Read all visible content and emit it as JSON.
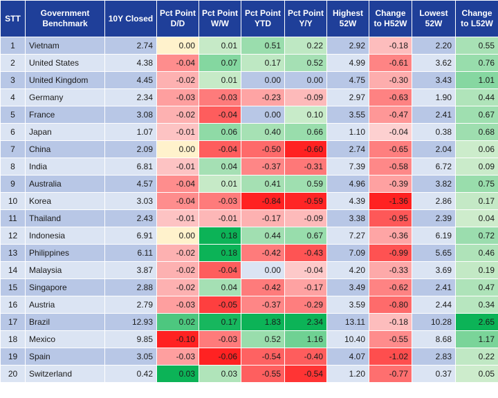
{
  "columns": [
    "STT",
    "Government Benchmark",
    "10Y Closed",
    "Pct Point D/D",
    "Pct Point W/W",
    "Pct Point YTD",
    "Pct Point Y/Y",
    "Highest 52W",
    "Change to H52W",
    "Lowest 52W",
    "Change to L52W"
  ],
  "rows": [
    {
      "stt": "1",
      "name": "Vietnam",
      "closed": "2.74",
      "dd": "0.00",
      "ww": "0.01",
      "ytd": "0.51",
      "yy": "0.22",
      "high": "2.92",
      "chigh": "-0.18",
      "low": "2.20",
      "clow": "0.55"
    },
    {
      "stt": "2",
      "name": "United States",
      "closed": "4.38",
      "dd": "-0.04",
      "ww": "0.07",
      "ytd": "0.17",
      "yy": "0.52",
      "high": "4.99",
      "chigh": "-0.61",
      "low": "3.62",
      "clow": "0.76"
    },
    {
      "stt": "3",
      "name": "United Kingdom",
      "closed": "4.45",
      "dd": "-0.02",
      "ww": "0.01",
      "ytd": "0.00",
      "yy": "0.00",
      "high": "4.75",
      "chigh": "-0.30",
      "low": "3.43",
      "clow": "1.01"
    },
    {
      "stt": "4",
      "name": "Germany",
      "closed": "2.34",
      "dd": "-0.03",
      "ww": "-0.03",
      "ytd": "-0.23",
      "yy": "-0.09",
      "high": "2.97",
      "chigh": "-0.63",
      "low": "1.90",
      "clow": "0.44"
    },
    {
      "stt": "5",
      "name": "France",
      "closed": "3.08",
      "dd": "-0.02",
      "ww": "-0.04",
      "ytd": "0.00",
      "yy": "0.10",
      "high": "3.55",
      "chigh": "-0.47",
      "low": "2.41",
      "clow": "0.67"
    },
    {
      "stt": "6",
      "name": "Japan",
      "closed": "1.07",
      "dd": "-0.01",
      "ww": "0.06",
      "ytd": "0.40",
      "yy": "0.66",
      "high": "1.10",
      "chigh": "-0.04",
      "low": "0.38",
      "clow": "0.68"
    },
    {
      "stt": "7",
      "name": "China",
      "closed": "2.09",
      "dd": "0.00",
      "ww": "-0.04",
      "ytd": "-0.50",
      "yy": "-0.60",
      "high": "2.74",
      "chigh": "-0.65",
      "low": "2.04",
      "clow": "0.06"
    },
    {
      "stt": "8",
      "name": "India",
      "closed": "6.81",
      "dd": "-0.01",
      "ww": "0.04",
      "ytd": "-0.37",
      "yy": "-0.31",
      "high": "7.39",
      "chigh": "-0.58",
      "low": "6.72",
      "clow": "0.09"
    },
    {
      "stt": "9",
      "name": "Australia",
      "closed": "4.57",
      "dd": "-0.04",
      "ww": "0.01",
      "ytd": "0.41",
      "yy": "0.59",
      "high": "4.96",
      "chigh": "-0.39",
      "low": "3.82",
      "clow": "0.75"
    },
    {
      "stt": "10",
      "name": "Korea",
      "closed": "3.03",
      "dd": "-0.04",
      "ww": "-0.03",
      "ytd": "-0.84",
      "yy": "-0.59",
      "high": "4.39",
      "chigh": "-1.36",
      "low": "2.86",
      "clow": "0.17"
    },
    {
      "stt": "11",
      "name": "Thailand",
      "closed": "2.43",
      "dd": "-0.01",
      "ww": "-0.01",
      "ytd": "-0.17",
      "yy": "-0.09",
      "high": "3.38",
      "chigh": "-0.95",
      "low": "2.39",
      "clow": "0.04"
    },
    {
      "stt": "12",
      "name": "Indonesia",
      "closed": "6.91",
      "dd": "0.00",
      "ww": "0.18",
      "ytd": "0.44",
      "yy": "0.67",
      "high": "7.27",
      "chigh": "-0.36",
      "low": "6.19",
      "clow": "0.72"
    },
    {
      "stt": "13",
      "name": "Philippines",
      "closed": "6.11",
      "dd": "-0.02",
      "ww": "0.18",
      "ytd": "-0.42",
      "yy": "-0.43",
      "high": "7.09",
      "chigh": "-0.99",
      "low": "5.65",
      "clow": "0.46"
    },
    {
      "stt": "14",
      "name": "Malaysia",
      "closed": "3.87",
      "dd": "-0.02",
      "ww": "-0.04",
      "ytd": "0.00",
      "yy": "-0.04",
      "high": "4.20",
      "chigh": "-0.33",
      "low": "3.69",
      "clow": "0.19"
    },
    {
      "stt": "15",
      "name": "Singapore",
      "closed": "2.88",
      "dd": "-0.02",
      "ww": "0.04",
      "ytd": "-0.42",
      "yy": "-0.17",
      "high": "3.49",
      "chigh": "-0.62",
      "low": "2.41",
      "clow": "0.47"
    },
    {
      "stt": "16",
      "name": "Austria",
      "closed": "2.79",
      "dd": "-0.03",
      "ww": "-0.05",
      "ytd": "-0.37",
      "yy": "-0.29",
      "high": "3.59",
      "chigh": "-0.80",
      "low": "2.44",
      "clow": "0.34"
    },
    {
      "stt": "17",
      "name": "Brazil",
      "closed": "12.93",
      "dd": "0.02",
      "ww": "0.17",
      "ytd": "1.83",
      "yy": "2.34",
      "high": "13.11",
      "chigh": "-0.18",
      "low": "10.28",
      "clow": "2.65"
    },
    {
      "stt": "18",
      "name": "Mexico",
      "closed": "9.85",
      "dd": "-0.10",
      "ww": "-0.03",
      "ytd": "0.52",
      "yy": "1.16",
      "high": "10.40",
      "chigh": "-0.55",
      "low": "8.68",
      "clow": "1.17"
    },
    {
      "stt": "19",
      "name": "Spain",
      "closed": "3.05",
      "dd": "-0.03",
      "ww": "-0.06",
      "ytd": "-0.54",
      "yy": "-0.40",
      "high": "4.07",
      "chigh": "-1.02",
      "low": "2.83",
      "clow": "0.22"
    },
    {
      "stt": "20",
      "name": "Switzerland",
      "closed": "0.42",
      "dd": "0.03",
      "ww": "0.03",
      "ytd": "-0.55",
      "yy": "-0.54",
      "high": "1.20",
      "chigh": "-0.77",
      "low": "0.37",
      "clow": "0.05"
    }
  ],
  "colors": {
    "header_bg": "#1f3f99",
    "row_odd": "#b8c7e6",
    "row_even": "#dbe4f3",
    "neutral_zero": "#fff2cc",
    "heat_negative": "#ff0000",
    "heat_positive": "#00b050"
  }
}
